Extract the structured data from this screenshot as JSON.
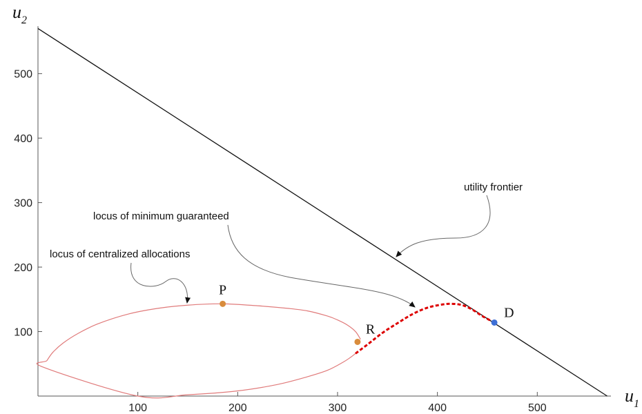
{
  "chart_data": {
    "type": "line",
    "xlabel": "u",
    "xlabel_sub": "1",
    "ylabel": "u",
    "ylabel_sub": "2",
    "xlim": [
      0,
      580
    ],
    "ylim": [
      0,
      570
    ],
    "xticks": [
      100,
      200,
      300,
      400,
      500
    ],
    "yticks": [
      100,
      200,
      300,
      400,
      500
    ],
    "grid": false,
    "colors": {
      "frontier": "#111111",
      "centralized": "#e07a7a",
      "guaranteed": "#dd0000",
      "point_orange": "#d98c3c",
      "point_blue": "#3d6fd6"
    },
    "series": [
      {
        "name": "utility frontier",
        "style": "solid",
        "x": [
          0,
          570
        ],
        "y": [
          570,
          0
        ]
      },
      {
        "name": "locus of centralized allocations",
        "style": "solid",
        "x": [
          323,
          318,
          310,
          300,
          290,
          270,
          250,
          220,
          185,
          150,
          120,
          90,
          60,
          40,
          25,
          15,
          9,
          5,
          100,
          150,
          200,
          240,
          270,
          290,
          305,
          313,
          318
        ],
        "y": [
          88,
          100,
          110,
          118,
          124,
          132,
          136,
          140,
          143,
          141,
          136,
          127,
          112,
          97,
          82,
          68,
          55,
          45,
          0,
          2,
          8,
          18,
          30,
          40,
          52,
          60,
          66
        ]
      },
      {
        "name": "locus of minimum guaranteed",
        "style": "dashed",
        "x": [
          318,
          330,
          345,
          360,
          375,
          390,
          405,
          415,
          425,
          435,
          445,
          457
        ],
        "y": [
          66,
          80,
          98,
          113,
          127,
          137,
          142,
          143,
          141,
          134,
          124,
          114
        ]
      }
    ],
    "points": [
      {
        "label": "P",
        "x": 185,
        "y": 143,
        "color": "#d98c3c"
      },
      {
        "label": "R",
        "x": 320,
        "y": 84,
        "color": "#d98c3c"
      },
      {
        "label": "D",
        "x": 457,
        "y": 114,
        "color": "#3d6fd6"
      }
    ],
    "annotations": [
      {
        "text": "utility frontier"
      },
      {
        "text": "locus of minimum guaranteed"
      },
      {
        "text": "locus of centralized allocations"
      }
    ]
  }
}
